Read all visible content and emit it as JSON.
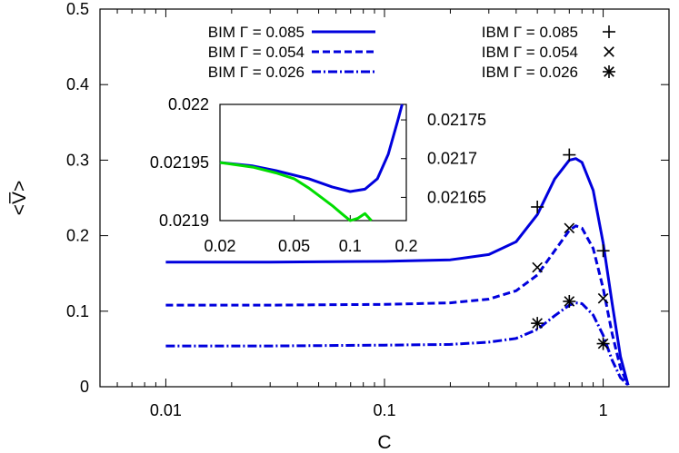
{
  "chart_data": [
    {
      "type": "line",
      "xscale": "log",
      "xlabel": "C",
      "ylabel": "<V̅>",
      "xlim": [
        0.005,
        2
      ],
      "ylim": [
        0,
        0.5
      ],
      "xticks": [
        {
          "value": 0.01,
          "label": "0.01"
        },
        {
          "value": 0.1,
          "label": "0.1"
        },
        {
          "value": 1,
          "label": "1"
        }
      ],
      "yticks": [
        {
          "value": 0,
          "label": "0"
        },
        {
          "value": 0.1,
          "label": "0.1"
        },
        {
          "value": 0.2,
          "label": "0.2"
        },
        {
          "value": 0.3,
          "label": "0.3"
        },
        {
          "value": 0.4,
          "label": "0.4"
        },
        {
          "value": 0.5,
          "label": "0.5"
        }
      ],
      "legend_placement": "top",
      "series": [
        {
          "name": "BIM Γ = 0.085",
          "style": "solid",
          "color": "#0000dd",
          "x": [
            0.01,
            0.03,
            0.1,
            0.2,
            0.3,
            0.4,
            0.5,
            0.6,
            0.7,
            0.75,
            0.8,
            0.9,
            1.0,
            1.1,
            1.2,
            1.3
          ],
          "y": [
            0.165,
            0.165,
            0.166,
            0.168,
            0.175,
            0.192,
            0.228,
            0.275,
            0.3,
            0.302,
            0.297,
            0.26,
            0.19,
            0.11,
            0.04,
            0.002
          ]
        },
        {
          "name": "BIM Γ = 0.054",
          "style": "dash",
          "color": "#0000dd",
          "x": [
            0.01,
            0.03,
            0.1,
            0.2,
            0.3,
            0.4,
            0.5,
            0.6,
            0.7,
            0.75,
            0.8,
            0.9,
            1.0,
            1.1,
            1.2,
            1.3
          ],
          "y": [
            0.108,
            0.108,
            0.109,
            0.111,
            0.116,
            0.127,
            0.148,
            0.18,
            0.207,
            0.213,
            0.21,
            0.183,
            0.13,
            0.07,
            0.025,
            0.002
          ]
        },
        {
          "name": "BIM Γ = 0.026",
          "style": "dashdot",
          "color": "#0000dd",
          "x": [
            0.01,
            0.03,
            0.1,
            0.2,
            0.3,
            0.4,
            0.5,
            0.6,
            0.7,
            0.75,
            0.8,
            0.9,
            1.0,
            1.1,
            1.2,
            1.3
          ],
          "y": [
            0.054,
            0.054,
            0.055,
            0.056,
            0.059,
            0.064,
            0.076,
            0.094,
            0.108,
            0.111,
            0.11,
            0.095,
            0.068,
            0.035,
            0.012,
            0.002
          ]
        },
        {
          "name": "IBM Γ = 0.085",
          "style": "marker",
          "marker": "plus",
          "x": [
            0.5,
            0.7,
            1.0
          ],
          "y": [
            0.238,
            0.307,
            0.18
          ]
        },
        {
          "name": "IBM Γ = 0.054",
          "style": "marker",
          "marker": "cross",
          "x": [
            0.5,
            0.7,
            1.0
          ],
          "y": [
            0.158,
            0.21,
            0.117
          ]
        },
        {
          "name": "IBM Γ = 0.026",
          "style": "marker",
          "marker": "star",
          "x": [
            0.5,
            0.7,
            1.0
          ],
          "y": [
            0.084,
            0.113,
            0.057
          ]
        }
      ]
    },
    {
      "type": "line",
      "role": "inset",
      "xscale": "log",
      "xlim": [
        0.02,
        0.2
      ],
      "ylim_left": [
        0.0219,
        0.022
      ],
      "ylim_right": [
        0.02162,
        0.02177
      ],
      "xticks": [
        {
          "value": 0.02,
          "label": "0.02"
        },
        {
          "value": 0.05,
          "label": "0.05"
        },
        {
          "value": 0.1,
          "label": "0.1"
        },
        {
          "value": 0.2,
          "label": "0.2"
        }
      ],
      "yticks_left": [
        {
          "value": 0.0219,
          "label": "0.0219"
        },
        {
          "value": 0.02195,
          "label": "0.02195"
        },
        {
          "value": 0.022,
          "label": "0.022"
        }
      ],
      "yticks_right": [
        {
          "value": 0.02165,
          "label": "0.02165"
        },
        {
          "value": 0.0217,
          "label": "0.0217"
        },
        {
          "value": 0.02175,
          "label": "0.02175"
        }
      ],
      "series": [
        {
          "axis": "left",
          "color": "#0000dd",
          "x": [
            0.02,
            0.03,
            0.04,
            0.06,
            0.08,
            0.1,
            0.12,
            0.14,
            0.16,
            0.18,
            0.19
          ],
          "y": [
            0.02195,
            0.021947,
            0.021943,
            0.021936,
            0.021929,
            0.021925,
            0.021927,
            0.021936,
            0.021957,
            0.021986,
            0.022
          ]
        },
        {
          "axis": "left",
          "color": "#00dd00",
          "x": [
            0.02,
            0.03,
            0.04,
            0.05,
            0.06,
            0.07,
            0.08,
            0.09,
            0.1,
            0.11,
            0.12,
            0.13
          ],
          "y": [
            0.02195,
            0.021946,
            0.021941,
            0.021936,
            0.021928,
            0.02192,
            0.021913,
            0.021906,
            0.0219,
            0.021902,
            0.021906,
            0.0219
          ]
        }
      ]
    }
  ]
}
